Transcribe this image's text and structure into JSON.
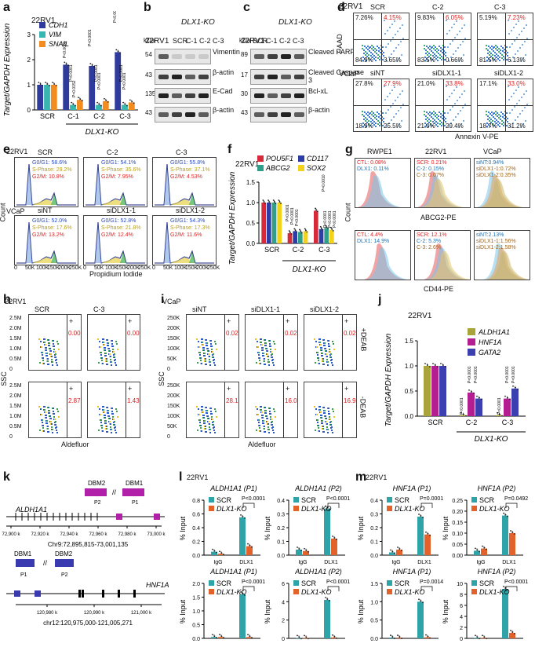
{
  "panels": {
    "a": {
      "letter": "a",
      "cell": "22RV1",
      "ylabel": "Target/GAPDH Expression",
      "legend": [
        "CDH1",
        "VIM",
        "SNAIL"
      ],
      "xlabel": "DLX1-KO",
      "pvals": [
        "P<0.0001",
        "P<0.0001",
        "P=0.0152",
        "P<0.0001",
        "P<0.0001",
        "P<0.0001",
        "P<0.0001",
        "P<0.0001",
        "P<0.0001"
      ]
    },
    "b": {
      "letter": "b",
      "cell": "22RV1",
      "ko": "DLX1-KO",
      "unit": "kDa",
      "lanes": [
        "SCR",
        "C-1",
        "C-2",
        "C-3"
      ],
      "mw": [
        "54",
        "43",
        "135",
        "43"
      ],
      "bands": [
        "Vimentin",
        "β-actin",
        "E-Cad",
        "β-actin"
      ]
    },
    "c": {
      "letter": "c",
      "cell": "22RV1",
      "ko": "DLX1-KO",
      "unit": "kDa",
      "lanes": [
        "SCR",
        "C-1",
        "C-2",
        "C-3"
      ],
      "mw": [
        "89",
        "17",
        "30",
        "43"
      ],
      "bands": [
        "Cleaved PARP",
        "Cleaved Caspase 3",
        "Bcl-xL",
        "β-actin"
      ]
    },
    "d": {
      "letter": "d",
      "cell1": "22RV1",
      "cell2": "VCaP",
      "ylabel": "7-AAD",
      "xlabel": "Annexin V-PE",
      "rows": [
        {
          "titles": [
            "SCR",
            "C-2",
            "C-3"
          ],
          "q": [
            [
              "7.26%",
              "4.15%",
              "84.9%",
              "3.65%"
            ],
            [
              "9.83%",
              "6.05%",
              "83.5%",
              "0.66%"
            ],
            [
              "5.19%",
              "7.23%",
              "81.5%",
              "6.13%"
            ]
          ]
        },
        {
          "titles": [
            "siNT",
            "siDLX1-1",
            "siDLX1-2"
          ],
          "q": [
            [
              "27.8%",
              "27.9%",
              "18.9%",
              "25.5%"
            ],
            [
              "21.0%",
              "33.8%",
              "21.0%",
              "29.4%"
            ],
            [
              "17.1%",
              "33.0%",
              "18.7%",
              "31.2%"
            ]
          ]
        }
      ]
    },
    "e": {
      "letter": "e",
      "cell1": "22RV1",
      "cell2": "VCaP",
      "ylabel": "Count",
      "xlabel": "Propidium Iodide",
      "ticks": [
        "0",
        "50K",
        "100K",
        "150K",
        "200K",
        "250K"
      ],
      "rows": [
        {
          "titles": [
            "SCR",
            "C-2",
            "C-3"
          ],
          "g": [
            [
              "G0/G1: 58.6%",
              "S-Phase: 29.2%",
              "G2/M: 10.8%"
            ],
            [
              "G0/G1: 54.1%",
              "S-Phase: 35.6%",
              "G2/M: 7.95%"
            ],
            [
              "G0/G1: 55.8%",
              "S-Phase: 37.1%",
              "G2/M: 4.53%"
            ]
          ]
        },
        {
          "titles": [
            "siNT",
            "siDLX1-1",
            "siDLX1-2"
          ],
          "g": [
            [
              "G0/G1: 52.0%",
              "S-Phase: 17.6%",
              "G2/M: 13.2%"
            ],
            [
              "G0/G1: 52.8%",
              "S-Phase: 21.8%",
              "G2/M: 12.4%"
            ],
            [
              "G0/G1: 54.3%",
              "S-Phase: 17.3%",
              "G2/M: 11.6%"
            ]
          ]
        }
      ]
    },
    "f": {
      "letter": "f",
      "cell": "22RV1",
      "ylabel": "Target/GAPDH Expression",
      "legend": [
        "POU5F1",
        "CD117",
        "ABCG2",
        "SOX2"
      ],
      "xlabel": "DLX1-KO",
      "pvals": [
        "P=0.0010",
        "P<0.0001",
        "P<0.0001",
        "P<0.0001",
        "P<0.0001",
        "P<0.0001",
        "P<0.0001"
      ]
    },
    "g": {
      "letter": "g",
      "ylabel": "Count",
      "xlabel1": "ABCG2-PE",
      "xlabel2": "CD44-PE",
      "titles": [
        "RWPE1",
        "22RV1",
        "VCaP"
      ],
      "top": [
        [
          "CTL: 0.08%",
          "DLX1: 0.11%"
        ],
        [
          "SCR: 0.21%",
          "C-2: 0.15%",
          "C-3: 0.07%"
        ],
        [
          "siNT:0.94%",
          "siDLX1-1:0.72%",
          "siDLX1-2:0.35%"
        ]
      ],
      "bottom": [
        [
          "CTL: 4.4%",
          "DLX1: 14.9%"
        ],
        [
          "SCR: 12.1%",
          "C-2: 5.3%",
          "C-3: 2.6%"
        ],
        [
          "siNT:2.13%",
          "siDLX1-1:1.56%",
          "siDLX1-2:1.58%"
        ]
      ]
    },
    "h": {
      "letter": "h",
      "cell": "22RV1",
      "titles": [
        "SCR",
        "C-3"
      ],
      "ylabel": "SSC",
      "xlabel": "Aldefluor",
      "yticks": [
        "2.5M",
        "2.0M",
        "1.5M",
        "1.0M",
        "0.5M",
        "0"
      ],
      "vals": [
        [
          "0.00",
          "0.00"
        ],
        [
          "2.87",
          "1.43"
        ]
      ]
    },
    "i": {
      "letter": "i",
      "cell": "VCaP",
      "titles": [
        "siNT",
        "siDLX1-1",
        "siDLX1-2"
      ],
      "ylabel": "SSC",
      "xlabel": "Aldefluor",
      "yticks": [
        "250K",
        "200K",
        "150K",
        "100K",
        "50K",
        "0"
      ],
      "vals": [
        [
          "0.02",
          "0.02",
          "0.02"
        ],
        [
          "28.1",
          "16.0",
          "16.9"
        ]
      ],
      "rowlabels": [
        "+DEAB",
        "-DEAB"
      ]
    },
    "j": {
      "letter": "j",
      "cell": "22RV1",
      "ylabel": "Target/GAPDH Expression",
      "legend": [
        "ALDH1A1",
        "HNF1A",
        "GATA2"
      ],
      "xlabel": "DLX1-KO",
      "pvals": [
        "P<0.0001",
        "P<0.0001",
        "P<0.0001",
        "P<0.0001",
        "P<0.0001",
        "P<0.0001"
      ]
    },
    "k": {
      "letter": "k",
      "gene1": "ALDH1A1",
      "coord1": "Chr9:72,895,815-73,001,135",
      "ticks1": [
        "72,900 k",
        "72,920 k",
        "72,940 k",
        "72,960 k",
        "72,980 k",
        "73,000 k"
      ],
      "dbm1": [
        "DBM2",
        "DBM1"
      ],
      "gene2": "HNF1A",
      "coord2": "chr12:120,975,000-121,005,271",
      "ticks2": [
        "120,980 k",
        "120,990 k",
        "121,000 k"
      ],
      "dbm2": [
        "DBM1",
        "DBM2"
      ],
      "primers": [
        "P1",
        "P2"
      ]
    },
    "l": {
      "letter": "l",
      "cell": "22RV1",
      "ylabel": "% Input",
      "titles": [
        "ALDH1A1 (P1)",
        "ALDH1A1 (P2)",
        "ALDH1A1 (P1)",
        "ALDH1A1 (P2)"
      ],
      "legend": [
        "SCR",
        "DLX1-KO"
      ],
      "pvals": [
        "P<0.0001",
        "P<0.0001",
        "P<0.0001",
        "P<0.0001"
      ]
    },
    "m": {
      "letter": "m",
      "cell": "22RV1",
      "ylabel": "% Input",
      "titles": [
        "HNF1A (P1)",
        "HNF1A (P2)",
        "HNF1A (P1)",
        "HNF1A (P2)"
      ],
      "legend": [
        "SCR",
        "DLX1-KO"
      ],
      "pvals": [
        "P=0.0001",
        "P=0.0492",
        "P=0.0014",
        "P<0.0001"
      ]
    }
  },
  "chart_data": [
    {
      "id": "a",
      "type": "bar",
      "categories": [
        "SCR",
        "C-1",
        "C-2",
        "C-3"
      ],
      "series": [
        {
          "name": "CDH1",
          "values": [
            1.0,
            1.8,
            1.75,
            2.3
          ]
        },
        {
          "name": "VIM",
          "values": [
            1.0,
            0.2,
            0.2,
            0.2
          ]
        },
        {
          "name": "SNAIL",
          "values": [
            1.0,
            0.4,
            0.35,
            0.3
          ]
        }
      ],
      "ylim": [
        0,
        3
      ],
      "yticks": [
        "0",
        "1",
        "2",
        "3"
      ],
      "colors": [
        "#2e3a9c",
        "#38b6b0",
        "#f28c1e"
      ]
    },
    {
      "id": "f",
      "type": "bar",
      "categories": [
        "SCR",
        "C-2",
        "C-3"
      ],
      "series": [
        {
          "name": "POU5F1",
          "values": [
            1.0,
            0.25,
            0.8
          ]
        },
        {
          "name": "CD117",
          "values": [
            1.0,
            0.3,
            0.35
          ]
        },
        {
          "name": "ABCG2",
          "values": [
            1.0,
            0.28,
            0.38
          ]
        },
        {
          "name": "SOX2",
          "values": [
            1.0,
            0.3,
            0.33
          ]
        }
      ],
      "ylim": [
        0,
        1.5
      ],
      "yticks": [
        "0.0",
        "0.5",
        "1.0",
        "1.5"
      ],
      "colors": [
        "#d62a3a",
        "#2c3ea6",
        "#2ea08a",
        "#f5d21a"
      ]
    },
    {
      "id": "j",
      "type": "bar",
      "categories": [
        "SCR",
        "C-2",
        "C-3"
      ],
      "series": [
        {
          "name": "ALDH1A1",
          "values": [
            1.0,
            0.02,
            0.02
          ]
        },
        {
          "name": "HNF1A",
          "values": [
            1.0,
            0.47,
            0.35
          ]
        },
        {
          "name": "GATA2",
          "values": [
            1.0,
            0.35,
            0.55
          ]
        }
      ],
      "ylim": [
        0,
        1.5
      ],
      "yticks": [
        "0.0",
        "0.5",
        "1.0",
        "1.5"
      ],
      "colors": [
        "#a8a43a",
        "#b31f91",
        "#3b3fb0"
      ]
    },
    {
      "id": "l1",
      "type": "bar",
      "categories": [
        "IgG",
        "DLX1"
      ],
      "series": [
        {
          "name": "SCR",
          "values": [
            0.05,
            0.55
          ]
        },
        {
          "name": "DLX1-KO",
          "values": [
            0.02,
            0.13
          ]
        }
      ],
      "ylim": [
        0,
        0.8
      ],
      "yticks": [
        "0.0",
        "0.2",
        "0.4",
        "0.6",
        "0.8"
      ]
    },
    {
      "id": "l2",
      "type": "bar",
      "categories": [
        "IgG",
        "DLX1"
      ],
      "series": [
        {
          "name": "SCR",
          "values": [
            0.04,
            0.34
          ]
        },
        {
          "name": "DLX1-KO",
          "values": [
            0.03,
            0.12
          ]
        }
      ],
      "ylim": [
        0,
        0.4
      ],
      "yticks": [
        "0.0",
        "0.1",
        "0.2",
        "0.3",
        "0.4"
      ]
    },
    {
      "id": "l3",
      "type": "bar",
      "categories": [
        "IgG",
        "H3K9Ac"
      ],
      "series": [
        {
          "name": "SCR",
          "values": [
            0.05,
            1.6
          ]
        },
        {
          "name": "DLX1-KO",
          "values": [
            0.05,
            0.05
          ]
        }
      ],
      "ylim": [
        0,
        2.0
      ],
      "yticks": [
        "0.0",
        "0.5",
        "1.0",
        "1.5",
        "2.0"
      ]
    },
    {
      "id": "l4",
      "type": "bar",
      "categories": [
        "IgG",
        "H3K9Ac"
      ],
      "series": [
        {
          "name": "SCR",
          "values": [
            0.05,
            4.2
          ]
        },
        {
          "name": "DLX1-KO",
          "values": [
            0.05,
            0.1
          ]
        }
      ],
      "ylim": [
        0,
        6
      ],
      "yticks": [
        "0",
        "2",
        "4",
        "6"
      ]
    },
    {
      "id": "m1",
      "type": "bar",
      "categories": [
        "IgG",
        "DLX1"
      ],
      "series": [
        {
          "name": "SCR",
          "values": [
            0.02,
            0.28
          ]
        },
        {
          "name": "DLX1-KO",
          "values": [
            0.04,
            0.15
          ]
        }
      ],
      "ylim": [
        0,
        0.4
      ],
      "yticks": [
        "0.0",
        "0.1",
        "0.2",
        "0.3",
        "0.4"
      ]
    },
    {
      "id": "m2",
      "type": "bar",
      "categories": [
        "IgG",
        "DLX1"
      ],
      "series": [
        {
          "name": "SCR",
          "values": [
            0.02,
            0.18
          ]
        },
        {
          "name": "DLX1-KO",
          "values": [
            0.03,
            0.1
          ]
        }
      ],
      "ylim": [
        0,
        0.25
      ],
      "yticks": [
        "0.00",
        "0.05",
        "0.10",
        "0.15",
        "0.20",
        "0.25"
      ]
    },
    {
      "id": "m3",
      "type": "bar",
      "categories": [
        "IgG",
        "H3K9Ac"
      ],
      "series": [
        {
          "name": "SCR",
          "values": [
            0.02,
            1.0
          ]
        },
        {
          "name": "DLX1-KO",
          "values": [
            0.02,
            0.03
          ]
        }
      ],
      "ylim": [
        0,
        1.5
      ],
      "yticks": [
        "0.0",
        "0.5",
        "1.0",
        "1.5"
      ]
    },
    {
      "id": "m4",
      "type": "bar",
      "categories": [
        "IgG",
        "H3K9Ac"
      ],
      "series": [
        {
          "name": "SCR",
          "values": [
            0.1,
            9.0
          ]
        },
        {
          "name": "DLX1-KO",
          "values": [
            0.1,
            1.0
          ]
        }
      ],
      "ylim": [
        0,
        10
      ],
      "yticks": [
        "0",
        "2",
        "4",
        "6",
        "8",
        "10"
      ]
    }
  ],
  "colors": {
    "scr": "#2ea3a8",
    "ko": "#e2622a",
    "red": "#d22222",
    "blue": "#2a4bbd",
    "green": "#2b9a3a"
  }
}
